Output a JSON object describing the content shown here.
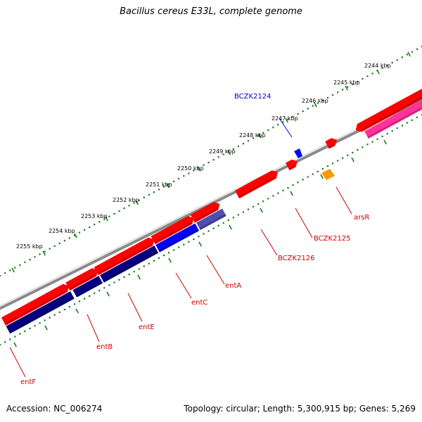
{
  "title": "Bacillus cereus E33L, complete genome",
  "footer": {
    "accession": "Accession: NC_006274",
    "summary": "Topology: circular; Length: 5,300,915 bp; Genes: 5,269"
  },
  "scale": {
    "labels": [
      "2244 kbp",
      "2245 kbp",
      "2246 kbp",
      "2247 kbp",
      "2248 kbp",
      "2249 kbp",
      "2250 kbp",
      "2251 kbp",
      "2252 kbp",
      "2253 kbp",
      "2254 kbp",
      "2255 kbp"
    ]
  },
  "genes": [
    {
      "label": "BCZK2124",
      "color": "#0000cc"
    },
    {
      "label": "arsR",
      "color": "#cc0000"
    },
    {
      "label": "BCZK2125",
      "color": "#cc0000"
    },
    {
      "label": "BCZK2126",
      "color": "#cc0000"
    },
    {
      "label": "entA",
      "color": "#cc0000"
    },
    {
      "label": "entC",
      "color": "#cc0000"
    },
    {
      "label": "entE",
      "color": "#cc0000"
    },
    {
      "label": "entB",
      "color": "#cc0000"
    },
    {
      "label": "entF",
      "color": "#cc0000"
    }
  ],
  "colors": {
    "backbone": "#8a8a8a",
    "forward_cds": "#ff0000",
    "reverse_cds": "#000080",
    "highlight_cds": "#0000ff",
    "ribbon": "#ff3399",
    "orange_feature": "#ff9900",
    "tick": "#1a7a1a"
  }
}
